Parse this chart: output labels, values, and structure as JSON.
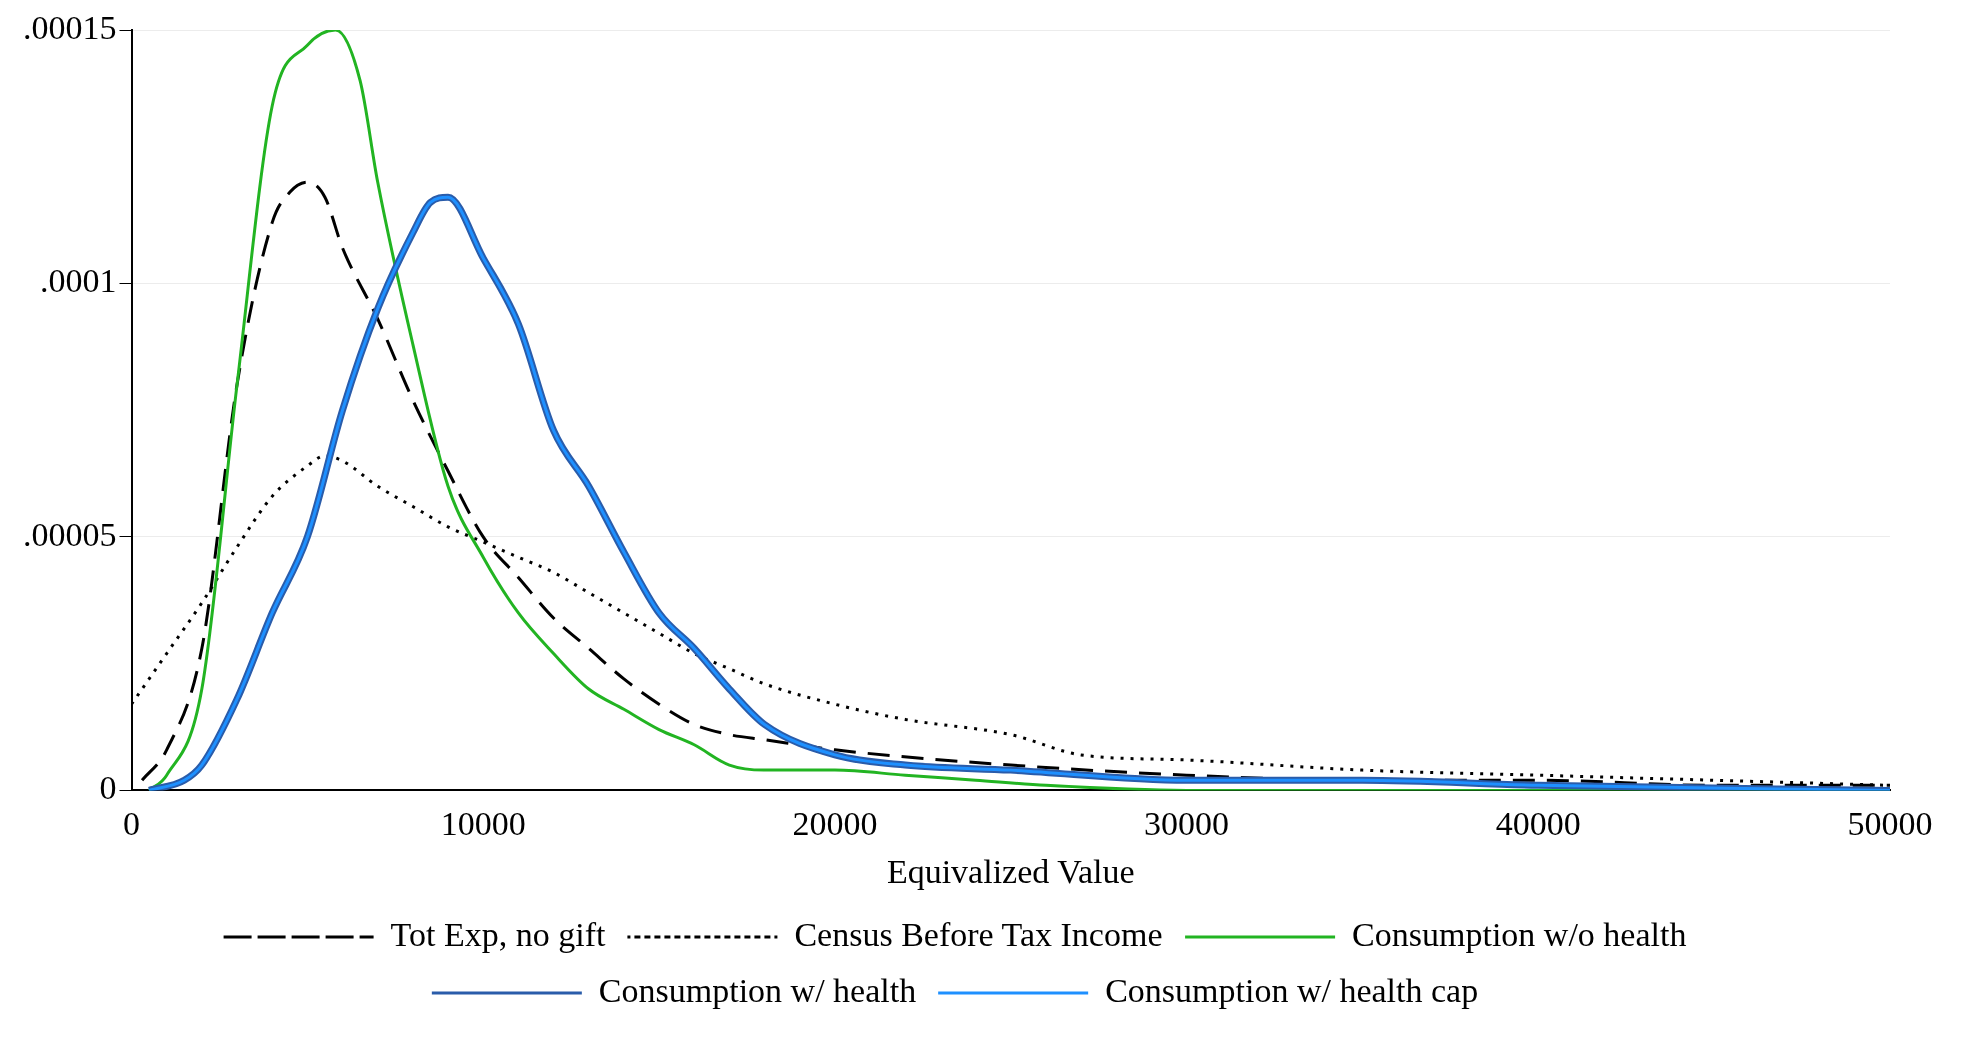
{
  "chart_data": {
    "type": "line",
    "xlabel": "Equivalized Value",
    "xlim": [
      0,
      50000
    ],
    "xticks": [
      0,
      10000,
      20000,
      30000,
      40000,
      50000
    ],
    "ylim": [
      0,
      0.00015
    ],
    "yticks": [
      {
        "value": 0,
        "label": "0"
      },
      {
        "value": 5e-05,
        "label": ".00005"
      },
      {
        "value": 0.0001,
        "label": ".0001"
      },
      {
        "value": 0.00015,
        "label": ".00015"
      }
    ],
    "grid": "y",
    "legend": "bottom",
    "marker": "none",
    "series": [
      {
        "name": "Tot Exp, no gift",
        "color": "#000000",
        "line_style": "dashed",
        "x": [
          300,
          1000,
          2000,
          3000,
          4000,
          4500,
          5000,
          5500,
          6000,
          7000,
          8000,
          9000,
          10000,
          11000,
          12000,
          13000,
          14000,
          15000,
          16000,
          17000,
          18000,
          20000,
          25000,
          30000,
          35000,
          40000,
          45000,
          50000
        ],
        "values": [
          2e-06,
          8e-06,
          2.8e-05,
          8e-05,
          0.000112,
          0.000118,
          0.00012,
          0.000117,
          0.000107,
          9.3e-05,
          7.7e-05,
          6.3e-05,
          5e-05,
          4.2e-05,
          3.4e-05,
          2.8e-05,
          2.2e-05,
          1.7e-05,
          1.3e-05,
          1.1e-05,
          1e-05,
          8e-06,
          5e-06,
          3e-06,
          2e-06,
          2e-06,
          1e-06,
          1e-06
        ]
      },
      {
        "name": "Census Before Tax Income",
        "color": "#000000",
        "line_style": "dotted",
        "x": [
          0,
          1000,
          2000,
          3000,
          4000,
          5000,
          5500,
          6000,
          7000,
          8000,
          9000,
          10000,
          11000,
          12000,
          13000,
          14000,
          15000,
          16000,
          17000,
          18000,
          20000,
          22000,
          25000,
          27000,
          30000,
          35000,
          40000,
          45000,
          50000
        ],
        "values": [
          1.7e-05,
          2.7e-05,
          3.7e-05,
          4.8e-05,
          5.8e-05,
          6.4e-05,
          6.6e-05,
          6.5e-05,
          6e-05,
          5.6e-05,
          5.2e-05,
          4.9e-05,
          4.6e-05,
          4.3e-05,
          3.9e-05,
          3.5e-05,
          3.1e-05,
          2.7e-05,
          2.4e-05,
          2.1e-05,
          1.7e-05,
          1.4e-05,
          1.1e-05,
          7e-06,
          6e-06,
          4e-06,
          3e-06,
          2e-06,
          1e-06
        ]
      },
      {
        "name": "Consumption w/o health",
        "color": "#22b422",
        "line_style": "solid",
        "x": [
          500,
          1000,
          2000,
          3000,
          4000,
          5000,
          5800,
          6500,
          7000,
          8000,
          9000,
          10000,
          11000,
          12000,
          13000,
          14000,
          15000,
          16000,
          17000,
          18000,
          20000,
          22000,
          24000,
          26000,
          30000,
          40000,
          50000
        ],
        "values": [
          0,
          3e-06,
          2e-05,
          8e-05,
          0.000135,
          0.000147,
          0.00015,
          0.00014,
          0.00012,
          8.8e-05,
          6e-05,
          4.6e-05,
          3.5e-05,
          2.7e-05,
          2e-05,
          1.6e-05,
          1.2e-05,
          9e-06,
          5e-06,
          4e-06,
          4e-06,
          3e-06,
          2e-06,
          1e-06,
          0,
          0,
          0
        ]
      },
      {
        "name": "Consumption w/ health",
        "color": "#2a5caa",
        "line_style": "solid",
        "x": [
          500,
          1500,
          2000,
          3000,
          4000,
          5000,
          6000,
          7000,
          8000,
          8500,
          9000,
          10000,
          11000,
          12000,
          13000,
          14000,
          15000,
          16000,
          17000,
          18000,
          20000,
          22000,
          25000,
          30000,
          35000,
          40000,
          50000
        ],
        "values": [
          0,
          2e-06,
          5e-06,
          1.8e-05,
          3.5e-05,
          5e-05,
          7.5e-05,
          9.5e-05,
          0.00011,
          0.000116,
          0.000117,
          0.000105,
          9.2e-05,
          7.1e-05,
          6e-05,
          4.7e-05,
          3.5e-05,
          2.8e-05,
          2e-05,
          1.3e-05,
          7e-06,
          5e-06,
          4e-06,
          2e-06,
          2e-06,
          1e-06,
          0
        ]
      },
      {
        "name": "Consumption w/ health cap",
        "color": "#1e90ff",
        "line_style": "solid",
        "x": [
          500,
          1500,
          2000,
          3000,
          4000,
          5000,
          6000,
          7000,
          8000,
          8500,
          9000,
          10000,
          11000,
          12000,
          13000,
          14000,
          15000,
          16000,
          17000,
          18000,
          20000,
          22000,
          25000,
          30000,
          35000,
          40000,
          50000
        ],
        "values": [
          0,
          2e-06,
          5e-06,
          1.8e-05,
          3.5e-05,
          5e-05,
          7.5e-05,
          9.5e-05,
          0.00011,
          0.000116,
          0.000117,
          0.000105,
          9.2e-05,
          7.1e-05,
          6e-05,
          4.7e-05,
          3.5e-05,
          2.8e-05,
          2e-05,
          1.3e-05,
          7e-06,
          5e-06,
          4e-06,
          2e-06,
          2e-06,
          1e-06,
          0
        ]
      }
    ]
  }
}
